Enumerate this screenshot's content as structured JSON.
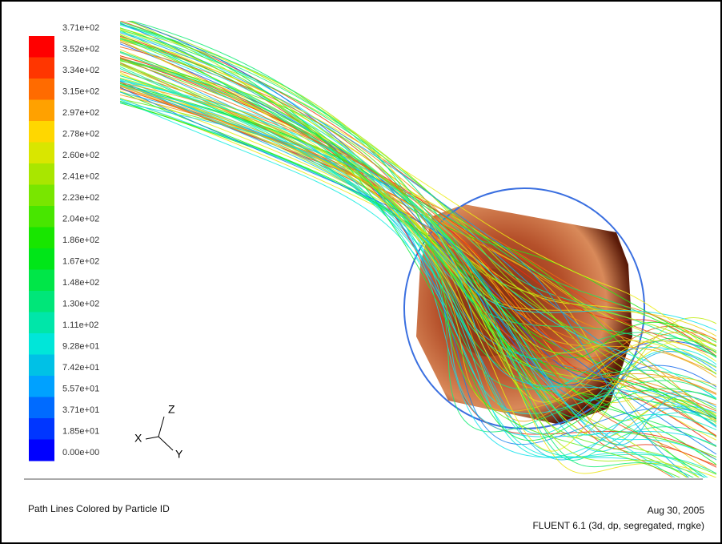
{
  "colorbar": {
    "labels": [
      "3.71e+02",
      "3.52e+02",
      "3.34e+02",
      "3.15e+02",
      "2.97e+02",
      "2.78e+02",
      "2.60e+02",
      "2.41e+02",
      "2.23e+02",
      "2.04e+02",
      "1.86e+02",
      "1.67e+02",
      "1.48e+02",
      "1.30e+02",
      "1.11e+02",
      "9.28e+01",
      "7.42e+01",
      "5.57e+01",
      "3.71e+01",
      "1.85e+01",
      "0.00e+00"
    ]
  },
  "axes": {
    "x": "X",
    "y": "Y",
    "z": "Z"
  },
  "footer": {
    "title": "Path Lines Colored by Particle ID",
    "date": "Aug 30, 2005",
    "solver": "FLUENT 6.1 (3d, dp, segregated, rngke)"
  }
}
